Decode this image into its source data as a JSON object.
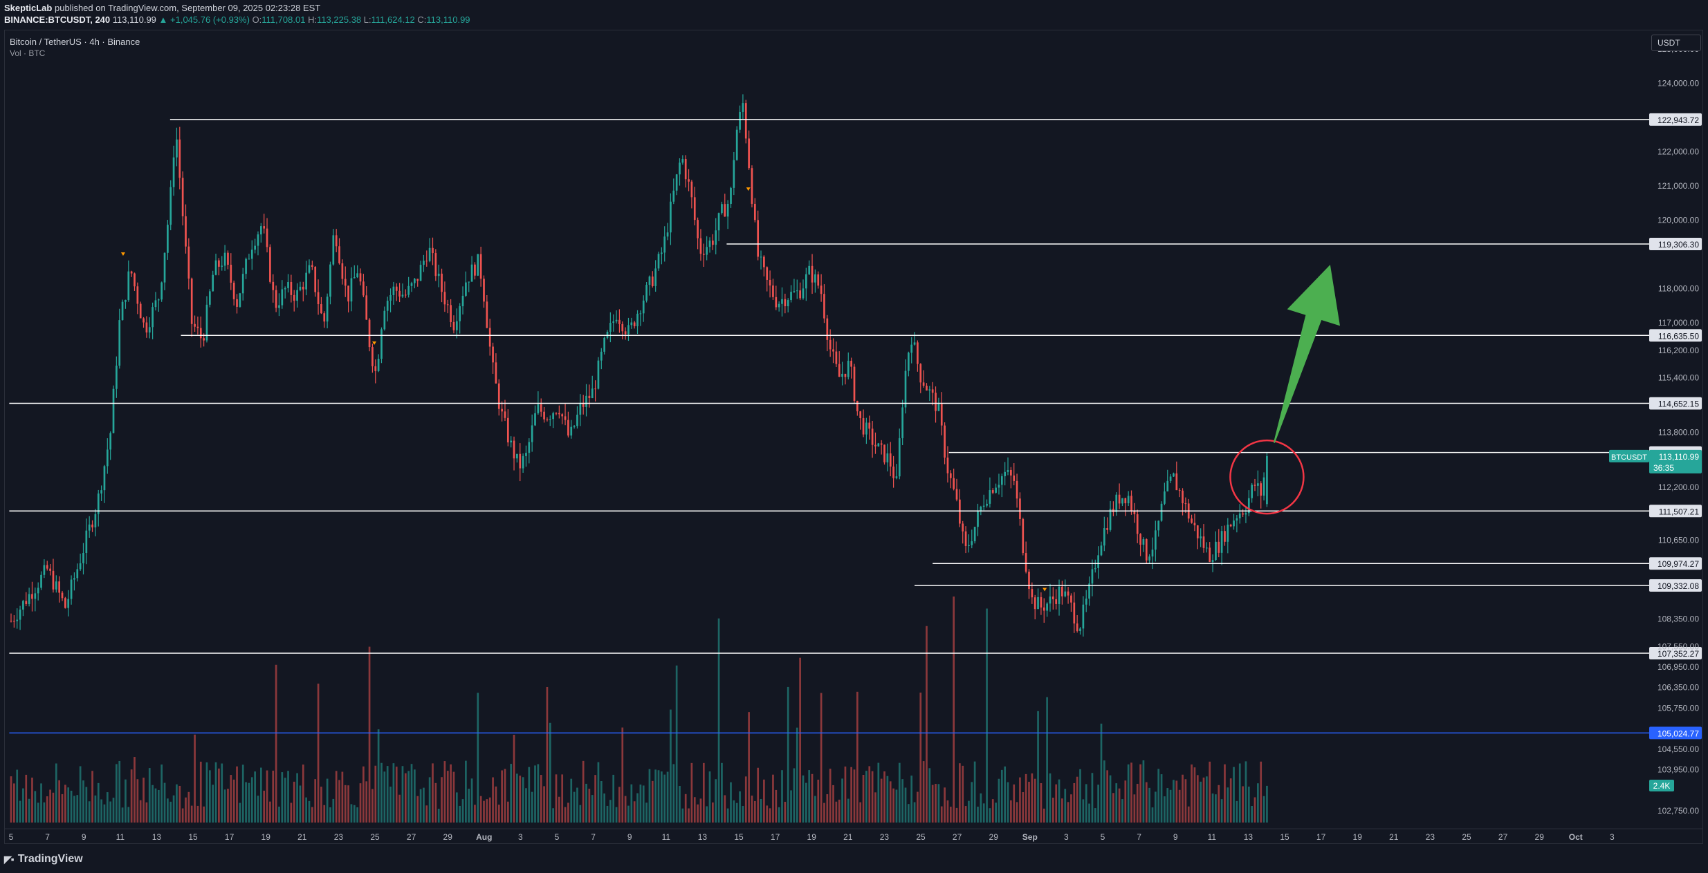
{
  "header": {
    "author": "SkepticLab",
    "published": "published on TradingView.com, September 09, 2025 02:23:28 EST",
    "symbol": "BINANCE:BTCUSDT, 240",
    "last": "113,110.99",
    "change": "▲ +1,045.76 (+0.93%)",
    "o_label": "O:",
    "o": "111,708.01",
    "h_label": "H:",
    "h": "113,225.38",
    "l_label": "L:",
    "l": "111,624.12",
    "c_label": "C:",
    "c": "113,110.99"
  },
  "legend": {
    "title": "Bitcoin / TetherUS · 4h · Binance",
    "volume": "Vol · BTC"
  },
  "currency_button": "USDT",
  "footer": {
    "logo": "TradingView"
  },
  "colors": {
    "background": "#131722",
    "up": "#26a69a",
    "down": "#ef5350",
    "level_line": "#ffffff",
    "blue_line": "#2962ff",
    "arrow": "#4caf50",
    "circle": "#f23645"
  },
  "chart_data": {
    "type": "candlestick",
    "symbol": "BTCUSDT",
    "timeframe": "4h",
    "y_ticks": [
      "125,000.00",
      "124,000.00",
      "122,000.00",
      "121,000.00",
      "120,000.00",
      "118,000.00",
      "117,000.00",
      "116,200.00",
      "115,400.00",
      "113,800.00",
      "112,200.00",
      "110,650.00",
      "108,350.00",
      "107,550.00",
      "106,950.00",
      "106,350.00",
      "105,750.00",
      "104,550.00",
      "103,950.00",
      "102,750.00"
    ],
    "y_tick_values": [
      125000,
      124000,
      122000,
      121000,
      120000,
      118000,
      117000,
      116200,
      115400,
      113800,
      112200,
      110650,
      108350,
      107550,
      106950,
      106350,
      105750,
      104550,
      103950,
      102750
    ],
    "x_ticks": [
      "5",
      "7",
      "9",
      "11",
      "13",
      "15",
      "17",
      "19",
      "21",
      "23",
      "25",
      "27",
      "29",
      "Aug",
      "3",
      "5",
      "7",
      "9",
      "11",
      "13",
      "15",
      "17",
      "19",
      "21",
      "23",
      "25",
      "27",
      "29",
      "Sep",
      "3",
      "5",
      "7",
      "9",
      "11",
      "13",
      "15",
      "17",
      "19",
      "21",
      "23",
      "25",
      "27",
      "29",
      "Oct",
      "3"
    ],
    "x_tick_bold": [
      "Aug",
      "Sep",
      "Oct"
    ],
    "ylim": [
      102000,
      125600
    ],
    "levels": [
      {
        "price": 122943.72,
        "label": "122,943.72",
        "from_day": 13.8
      },
      {
        "price": 119306.3,
        "label": "119,306.30",
        "from_day": 44.6
      },
      {
        "price": 116635.5,
        "label": "116,635.50",
        "from_day": 14.4
      },
      {
        "price": 114652.15,
        "label": "114,652.15",
        "from_day": 4.9
      },
      {
        "price": 113215.28,
        "label": "113,215.28",
        "from_day": 56.9
      },
      {
        "price": 111507.21,
        "label": "111,507.21",
        "from_day": 4.9
      },
      {
        "price": 109974.27,
        "label": "109,974.27",
        "from_day": 56.0
      },
      {
        "price": 109332.08,
        "label": "109,332.08",
        "from_day": 55.0
      },
      {
        "price": 107352.27,
        "label": "107,352.27",
        "from_day": 4.9
      }
    ],
    "blue_level": {
      "price": 105024.77,
      "label": "105,024.77"
    },
    "last_price": {
      "label": "113,110.99",
      "symbol": "BTCUSDT",
      "countdown": "36:35",
      "price": 113110.99
    },
    "volume_badge": "2.4K",
    "price_path": [
      [
        5.0,
        108300
      ],
      [
        7.0,
        109800
      ],
      [
        8.0,
        108700
      ],
      [
        9.0,
        110400
      ],
      [
        9.8,
        111800
      ],
      [
        10.5,
        113800
      ],
      [
        11.0,
        117000
      ],
      [
        11.6,
        118600
      ],
      [
        12.4,
        116800
      ],
      [
        13.2,
        117800
      ],
      [
        13.8,
        120500
      ],
      [
        14.1,
        122800
      ],
      [
        14.6,
        119500
      ],
      [
        15.0,
        117000
      ],
      [
        15.6,
        116500
      ],
      [
        16.2,
        118500
      ],
      [
        16.8,
        118900
      ],
      [
        17.5,
        117600
      ],
      [
        18.3,
        119300
      ],
      [
        18.9,
        119900
      ],
      [
        19.6,
        117500
      ],
      [
        20.2,
        118000
      ],
      [
        20.8,
        117800
      ],
      [
        21.6,
        118600
      ],
      [
        22.3,
        116900
      ],
      [
        22.9,
        119800
      ],
      [
        23.6,
        117700
      ],
      [
        24.2,
        118600
      ],
      [
        24.9,
        116200
      ],
      [
        25.2,
        115500
      ],
      [
        25.6,
        117500
      ],
      [
        26.2,
        118000
      ],
      [
        26.8,
        117800
      ],
      [
        27.4,
        118200
      ],
      [
        28.1,
        119200
      ],
      [
        28.8,
        118000
      ],
      [
        29.5,
        117000
      ],
      [
        30.2,
        118300
      ],
      [
        30.9,
        118800
      ],
      [
        31.2,
        117700
      ],
      [
        31.6,
        115800
      ],
      [
        32.1,
        114400
      ],
      [
        32.6,
        113500
      ],
      [
        33.1,
        112800
      ],
      [
        33.5,
        113100
      ],
      [
        34.1,
        114500
      ],
      [
        34.7,
        114300
      ],
      [
        35.3,
        114600
      ],
      [
        35.9,
        113600
      ],
      [
        36.5,
        114500
      ],
      [
        37.2,
        115000
      ],
      [
        37.8,
        116300
      ],
      [
        38.5,
        117300
      ],
      [
        39.2,
        116700
      ],
      [
        39.8,
        117500
      ],
      [
        40.5,
        118300
      ],
      [
        41.1,
        119200
      ],
      [
        41.6,
        120600
      ],
      [
        42.1,
        121900
      ],
      [
        42.6,
        120800
      ],
      [
        43.1,
        119100
      ],
      [
        43.8,
        119400
      ],
      [
        44.3,
        120200
      ],
      [
        44.8,
        120600
      ],
      [
        45.1,
        122500
      ],
      [
        45.5,
        123400
      ],
      [
        45.9,
        121300
      ],
      [
        46.3,
        119000
      ],
      [
        46.8,
        118200
      ],
      [
        47.4,
        117600
      ],
      [
        48.0,
        117800
      ],
      [
        48.6,
        117900
      ],
      [
        49.2,
        118500
      ],
      [
        49.8,
        118000
      ],
      [
        50.3,
        116300
      ],
      [
        50.8,
        115400
      ],
      [
        51.4,
        115800
      ],
      [
        51.9,
        114200
      ],
      [
        52.5,
        113700
      ],
      [
        53.0,
        113300
      ],
      [
        53.6,
        113000
      ],
      [
        54.0,
        112300
      ],
      [
        54.4,
        115200
      ],
      [
        54.8,
        116700
      ],
      [
        55.3,
        115500
      ],
      [
        55.8,
        115000
      ],
      [
        56.3,
        114500
      ],
      [
        56.8,
        112800
      ],
      [
        57.3,
        111800
      ],
      [
        57.8,
        110300
      ],
      [
        58.3,
        111000
      ],
      [
        58.8,
        111800
      ],
      [
        59.4,
        112300
      ],
      [
        60.0,
        112600
      ],
      [
        60.5,
        112400
      ],
      [
        61.0,
        110500
      ],
      [
        61.5,
        108900
      ],
      [
        62.0,
        108700
      ],
      [
        62.6,
        108900
      ],
      [
        63.1,
        109200
      ],
      [
        63.6,
        108800
      ],
      [
        64.1,
        108100
      ],
      [
        64.6,
        109000
      ],
      [
        65.2,
        110500
      ],
      [
        65.8,
        111400
      ],
      [
        66.3,
        111900
      ],
      [
        66.8,
        112000
      ],
      [
        67.3,
        111100
      ],
      [
        67.8,
        110200
      ],
      [
        68.3,
        110600
      ],
      [
        68.8,
        111900
      ],
      [
        69.3,
        112500
      ],
      [
        69.8,
        111900
      ],
      [
        70.3,
        111200
      ],
      [
        70.8,
        110700
      ],
      [
        71.3,
        110200
      ],
      [
        71.8,
        110500
      ],
      [
        72.3,
        111000
      ],
      [
        72.8,
        111400
      ],
      [
        73.3,
        111600
      ],
      [
        73.8,
        112300
      ],
      [
        74.2,
        112000
      ],
      [
        74.5,
        113110
      ]
    ],
    "arrow": {
      "from": [
        74.9,
        113500
      ],
      "to": [
        78.0,
        118700
      ]
    },
    "circle": {
      "day": 74.5,
      "price": 112500
    }
  }
}
